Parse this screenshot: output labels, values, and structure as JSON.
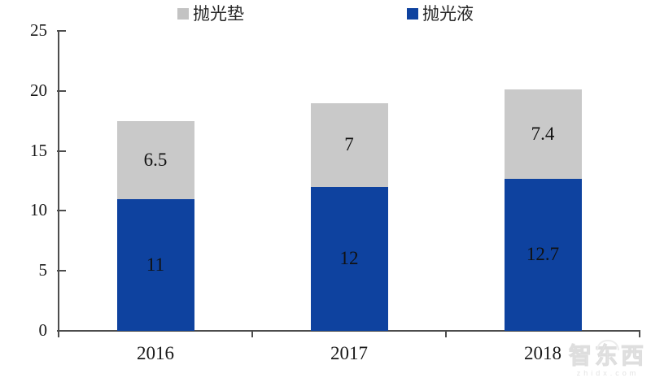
{
  "chart_data": {
    "type": "bar",
    "stacked": true,
    "title": "",
    "categories": [
      "2016",
      "2017",
      "2018"
    ],
    "series": [
      {
        "name": "抛光液",
        "color": "#0e429f",
        "values": [
          11,
          12,
          12.7
        ]
      },
      {
        "name": "抛光垫",
        "color": "#c9c9c9",
        "values": [
          6.5,
          7,
          7.4
        ]
      }
    ],
    "data_labels": {
      "抛光液": [
        "11",
        "12",
        "12.7"
      ],
      "抛光垫": [
        "6.5",
        "7",
        "7.4"
      ]
    },
    "legend": [
      {
        "label": "抛光垫",
        "color": "#c3c3c3"
      },
      {
        "label": "抛光液",
        "color": "#0e429f"
      }
    ],
    "legend_position": "top",
    "xlabel": "",
    "ylabel": "",
    "ylim": [
      0,
      25
    ],
    "yticks": [
      0,
      5,
      10,
      15,
      20,
      25
    ],
    "grid": false,
    "axis_color": "#4d4d4d",
    "label_color": "#111111"
  },
  "watermark": {
    "logo_text": "智东西",
    "site_text": "zhidx.com"
  }
}
